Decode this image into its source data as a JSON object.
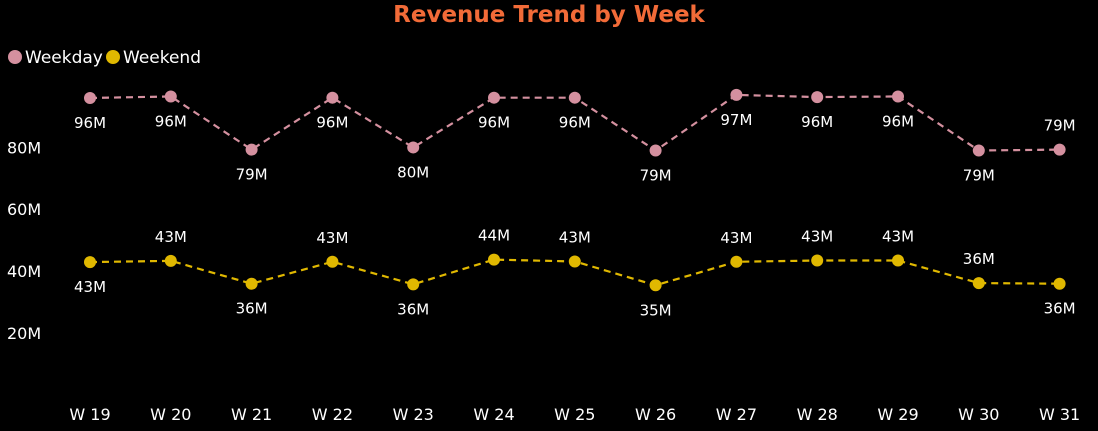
{
  "chart_data": {
    "type": "line",
    "title": "Revenue Trend by Week",
    "xlabel": "",
    "ylabel": "",
    "categories": [
      "W 19",
      "W 20",
      "W 21",
      "W 22",
      "W 23",
      "W 24",
      "W 25",
      "W 26",
      "W 27",
      "W 28",
      "W 29",
      "W 30",
      "W 31"
    ],
    "series": [
      {
        "name": "Weekday",
        "color": "#d4909f",
        "values": [
          96.0,
          96.5,
          79.3,
          96.1,
          80.0,
          96.1,
          96.1,
          79.0,
          97.0,
          96.3,
          96.5,
          79.0,
          79.3
        ],
        "labels": [
          "96M",
          "96M",
          "79M",
          "96M",
          "80M",
          "96M",
          "96M",
          "79M",
          "97M",
          "96M",
          "96M",
          "79M",
          "79M"
        ],
        "label_pos": [
          "below",
          "below",
          "below",
          "below",
          "below",
          "below",
          "below",
          "below",
          "below",
          "below",
          "below",
          "below",
          "above"
        ]
      },
      {
        "name": "Weekend",
        "color": "#e0b800",
        "values": [
          42.9,
          43.3,
          35.9,
          43.0,
          35.7,
          43.7,
          43.1,
          35.4,
          43.0,
          43.4,
          43.4,
          36.1,
          35.9
        ],
        "labels": [
          "43M",
          "43M",
          "36M",
          "43M",
          "36M",
          "44M",
          "43M",
          "35M",
          "43M",
          "43M",
          "43M",
          "36M",
          "36M"
        ],
        "label_pos": [
          "below",
          "above",
          "below",
          "above",
          "below",
          "above",
          "above",
          "below",
          "above",
          "above",
          "above",
          "above",
          "below"
        ]
      }
    ],
    "y_ticks": [
      {
        "value": 20,
        "label": "20M"
      },
      {
        "value": 40,
        "label": "40M"
      },
      {
        "value": 60,
        "label": "60M"
      },
      {
        "value": 80,
        "label": "80M"
      }
    ],
    "ylim": [
      5,
      102
    ],
    "grid": false,
    "legend": "top-left",
    "line_style": "dashed",
    "title_color": "#f26b38"
  }
}
